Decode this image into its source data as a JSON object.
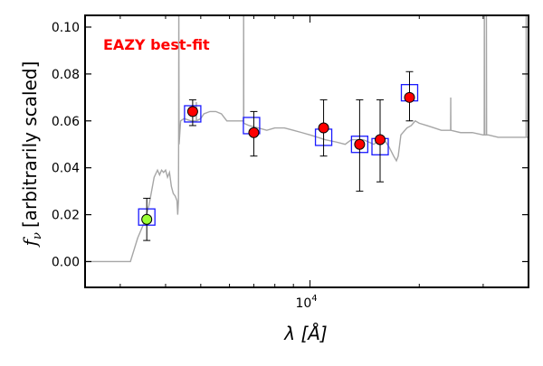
{
  "chart_data": {
    "type": "scatter",
    "annotation": "EAZY best-fit",
    "xlabel": "λ [Å]",
    "ylabel_symbol": "f",
    "ylabel_sub": "ν",
    "ylabel_text": "[arbitrarily scaled]",
    "x_scale": "log",
    "xlim": [
      2400,
      40000
    ],
    "ylim": [
      -0.011,
      0.105
    ],
    "y_ticks": [
      "0.00",
      "0.02",
      "0.04",
      "0.06",
      "0.08",
      "0.10"
    ],
    "y_tick_values": [
      0.0,
      0.02,
      0.04,
      0.06,
      0.08,
      0.1
    ],
    "x_tick_label_base": "10",
    "x_tick_label_exp": "4",
    "x_tick_value": 10000,
    "grid": false,
    "colors": {
      "template": "#a6a6a6",
      "observed": "#ff0000",
      "observed_special": "#9aff33",
      "model_box": "#1a1aff",
      "annotation": "#ff0000",
      "error_bar": "#000000"
    },
    "model_boxes": [
      {
        "x": 3550,
        "y": 0.019
      },
      {
        "x": 4750,
        "y": 0.063
      },
      {
        "x": 6900,
        "y": 0.058
      },
      {
        "x": 10900,
        "y": 0.053
      },
      {
        "x": 13700,
        "y": 0.05
      },
      {
        "x": 15600,
        "y": 0.049
      },
      {
        "x": 18800,
        "y": 0.072
      }
    ],
    "observed_points": [
      {
        "x": 3550,
        "y": 0.018,
        "yerr_low": 0.009,
        "yerr_high": 0.027,
        "special": true
      },
      {
        "x": 4750,
        "y": 0.064,
        "yerr_low": 0.058,
        "yerr_high": 0.069,
        "special": false
      },
      {
        "x": 7000,
        "y": 0.055,
        "yerr_low": 0.045,
        "yerr_high": 0.064,
        "special": false
      },
      {
        "x": 10900,
        "y": 0.057,
        "yerr_low": 0.045,
        "yerr_high": 0.069,
        "special": false
      },
      {
        "x": 13700,
        "y": 0.05,
        "yerr_low": 0.03,
        "yerr_high": 0.069,
        "special": false
      },
      {
        "x": 15600,
        "y": 0.052,
        "yerr_low": 0.034,
        "yerr_high": 0.069,
        "special": false
      },
      {
        "x": 18800,
        "y": 0.07,
        "yerr_low": 0.06,
        "yerr_high": 0.081,
        "special": false
      }
    ],
    "template_spectrum": [
      [
        2400,
        0.0
      ],
      [
        3200,
        0.0
      ],
      [
        3350,
        0.01
      ],
      [
        3500,
        0.017
      ],
      [
        3600,
        0.024
      ],
      [
        3680,
        0.032
      ],
      [
        3720,
        0.036
      ],
      [
        3800,
        0.039
      ],
      [
        3850,
        0.037
      ],
      [
        3900,
        0.039
      ],
      [
        3950,
        0.038
      ],
      [
        4000,
        0.039
      ],
      [
        4050,
        0.036
      ],
      [
        4100,
        0.038
      ],
      [
        4150,
        0.032
      ],
      [
        4200,
        0.029
      ],
      [
        4250,
        0.028
      ],
      [
        4300,
        0.026
      ],
      [
        4320,
        0.02
      ],
      [
        4340,
        0.026
      ],
      [
        4345,
        0.05
      ],
      [
        4350,
        0.11
      ],
      [
        4358,
        0.05
      ],
      [
        4400,
        0.06
      ],
      [
        4500,
        0.061
      ],
      [
        4700,
        0.06
      ],
      [
        4860,
        0.06
      ],
      [
        4862,
        0.068
      ],
      [
        4866,
        0.06
      ],
      [
        5000,
        0.061
      ],
      [
        5100,
        0.063
      ],
      [
        5300,
        0.064
      ],
      [
        5500,
        0.064
      ],
      [
        5700,
        0.063
      ],
      [
        5900,
        0.06
      ],
      [
        6000,
        0.06
      ],
      [
        6300,
        0.06
      ],
      [
        6560,
        0.06
      ],
      [
        6563,
        0.11
      ],
      [
        6570,
        0.059
      ],
      [
        6800,
        0.058
      ],
      [
        7200,
        0.057
      ],
      [
        7600,
        0.056
      ],
      [
        8000,
        0.057
      ],
      [
        8500,
        0.057
      ],
      [
        9000,
        0.056
      ],
      [
        9500,
        0.055
      ],
      [
        10000,
        0.054
      ],
      [
        10500,
        0.053
      ],
      [
        11000,
        0.052
      ],
      [
        11800,
        0.051
      ],
      [
        12500,
        0.05
      ],
      [
        13000,
        0.052
      ],
      [
        13500,
        0.052
      ],
      [
        14000,
        0.052
      ],
      [
        14500,
        0.051
      ],
      [
        15000,
        0.05
      ],
      [
        15500,
        0.052
      ],
      [
        16000,
        0.052
      ],
      [
        16500,
        0.049
      ],
      [
        17000,
        0.045
      ],
      [
        17300,
        0.043
      ],
      [
        17500,
        0.045
      ],
      [
        17800,
        0.054
      ],
      [
        18500,
        0.057
      ],
      [
        19000,
        0.058
      ],
      [
        19500,
        0.06
      ],
      [
        20000,
        0.059
      ],
      [
        21000,
        0.058
      ],
      [
        22000,
        0.057
      ],
      [
        23000,
        0.056
      ],
      [
        24000,
        0.056
      ],
      [
        24400,
        0.056
      ],
      [
        24420,
        0.07
      ],
      [
        24440,
        0.056
      ],
      [
        26000,
        0.055
      ],
      [
        28000,
        0.055
      ],
      [
        30000,
        0.054
      ],
      [
        30200,
        0.054
      ],
      [
        30220,
        0.11
      ],
      [
        30260,
        0.054
      ],
      [
        30600,
        0.054
      ],
      [
        30620,
        0.11
      ],
      [
        30660,
        0.054
      ],
      [
        31000,
        0.054
      ],
      [
        33000,
        0.053
      ],
      [
        35000,
        0.053
      ],
      [
        37000,
        0.053
      ],
      [
        39000,
        0.053
      ],
      [
        39400,
        0.053
      ],
      [
        39420,
        0.11
      ],
      [
        39460,
        0.053
      ],
      [
        40000,
        0.053
      ]
    ]
  }
}
